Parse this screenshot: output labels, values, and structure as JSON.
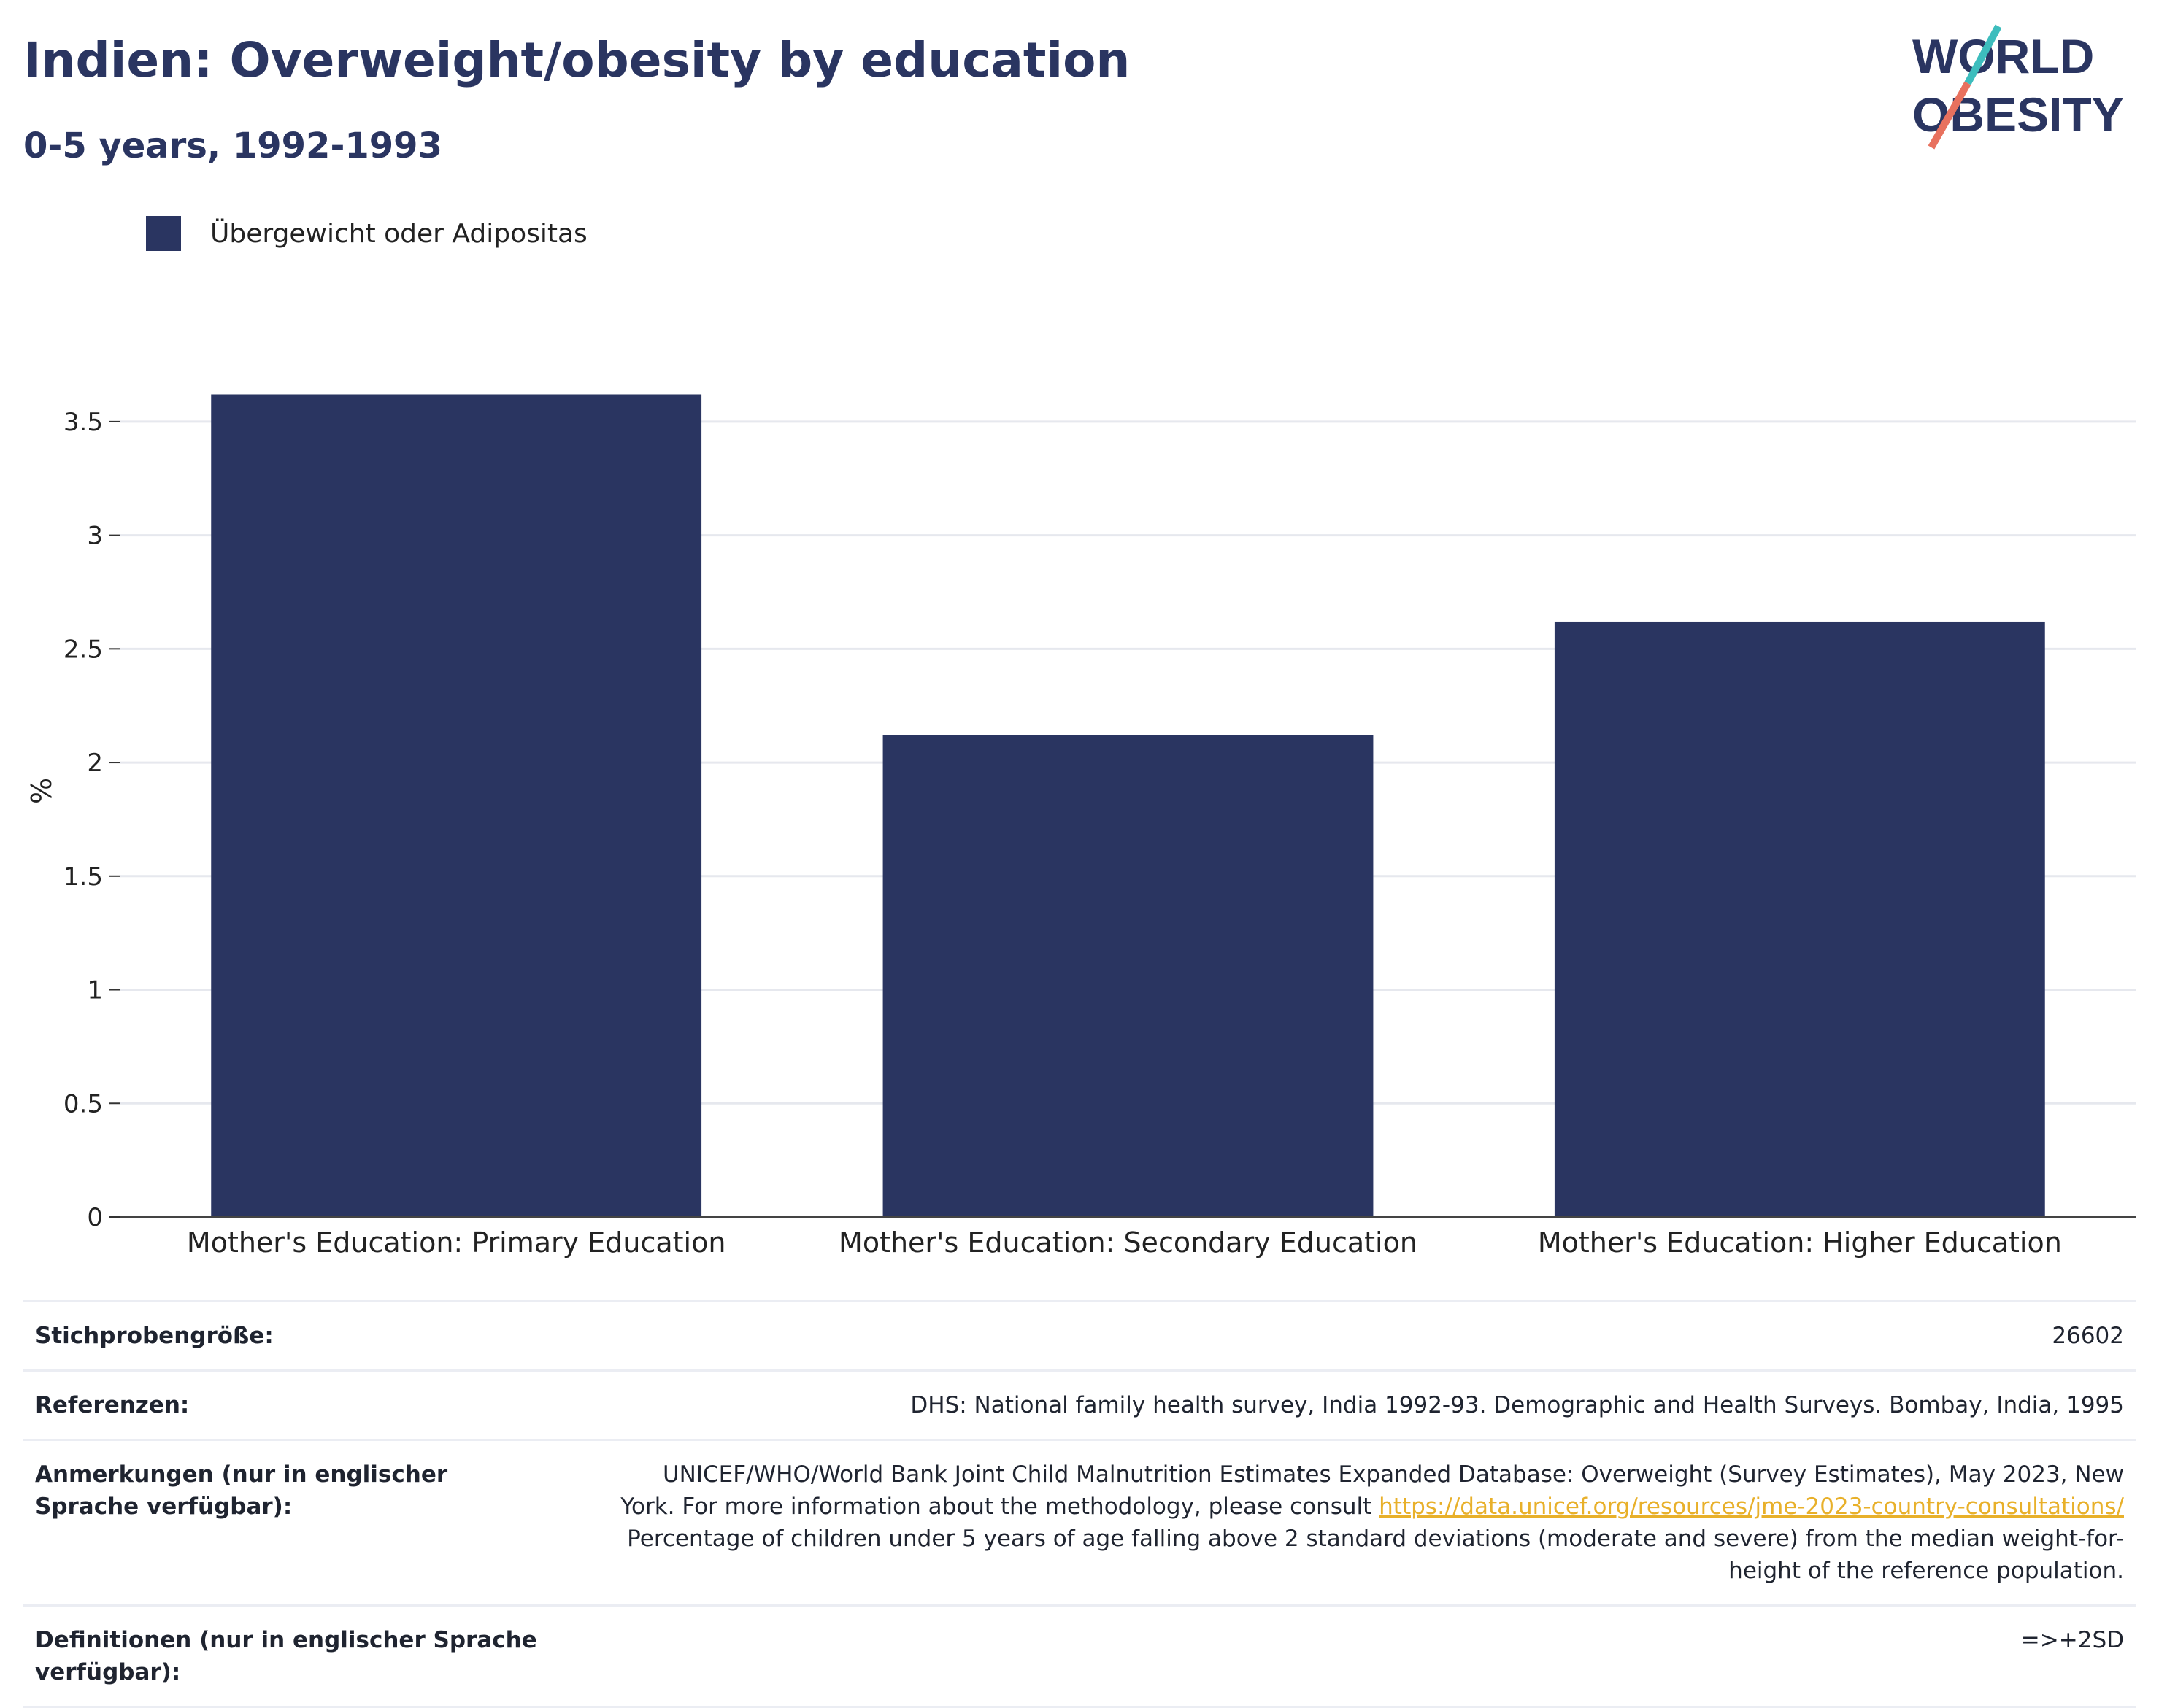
{
  "header": {
    "title": "Indien: Overweight/obesity by education",
    "subtitle": "0-5 years, 1992-1993"
  },
  "logo": {
    "line1": "WORLD",
    "line2": "OBESITY",
    "accent_teal": "#3dbdbd",
    "accent_coral": "#e8715e"
  },
  "legend": {
    "label": "Übergewicht oder Adipositas",
    "color": "#2a3561"
  },
  "chart_data": {
    "type": "bar",
    "categories": [
      "Mother's Education: Primary Education",
      "Mother's Education: Secondary Education",
      "Mother's Education: Higher Education"
    ],
    "series": [
      {
        "name": "Übergewicht oder Adipositas",
        "values": [
          3.62,
          2.12,
          2.62
        ],
        "color": "#2a3561"
      }
    ],
    "ylabel": "%",
    "ylim": [
      0,
      3.75
    ],
    "yticks": [
      0,
      0.5,
      1,
      1.5,
      2,
      2.5,
      3,
      3.5
    ],
    "ytick_labels": [
      "0",
      "0.5",
      "1",
      "1.5",
      "2",
      "2.5",
      "3",
      "3.5"
    ],
    "grid": true
  },
  "info": {
    "sample_size_label": "Stichprobengröße:",
    "sample_size_value": "26602",
    "references_label": "Referenzen:",
    "references_value": "DHS: National family health survey, India 1992-93. Demographic and Health Surveys. Bombay, India, 1995",
    "notes_label": "Anmerkungen (nur in englischer Sprache verfügbar):",
    "notes_text_before": "UNICEF/WHO/World Bank Joint Child Malnutrition Estimates Expanded Database: Overweight (Survey Estimates), May 2023, New York. For more information about the methodology, please consult ",
    "notes_link": "https://data.unicef.org/resources/jme-2023-country-consultations/",
    "notes_text_after": " Percentage of children under 5 years of age falling above 2 standard deviations (moderate and severe) from the median weight-for-height of the reference population.",
    "definitions_label": "Definitionen (nur in englischer Sprache verfügbar):",
    "definitions_value": "=>+2SD"
  }
}
